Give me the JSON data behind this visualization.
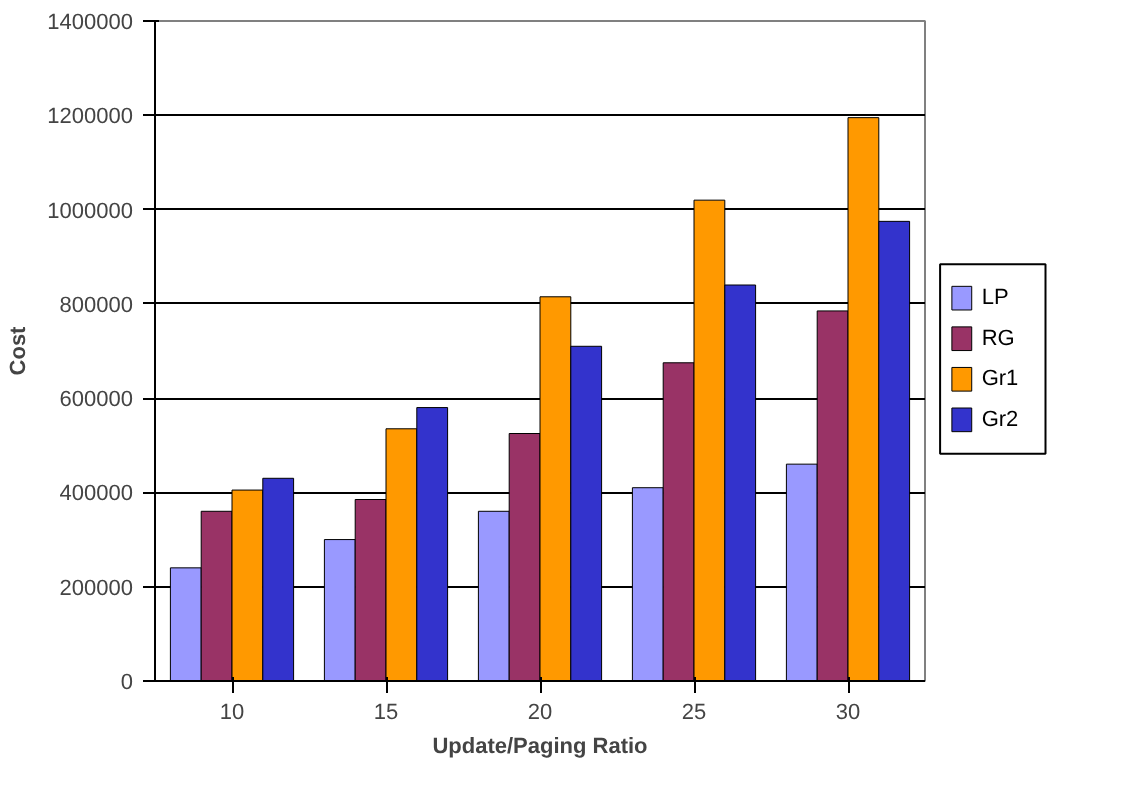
{
  "chart_data": {
    "type": "bar",
    "xlabel": "Update/Paging Ratio",
    "ylabel": "Cost",
    "categories": [
      "10",
      "15",
      "20",
      "25",
      "30"
    ],
    "series": [
      {
        "name": "LP",
        "color": "#9999ff",
        "values": [
          240000,
          300000,
          360000,
          410000,
          460000
        ]
      },
      {
        "name": "RG",
        "color": "#993366",
        "values": [
          360000,
          385000,
          525000,
          675000,
          785000
        ]
      },
      {
        "name": "Gr1",
        "color": "#ff9900",
        "values": [
          405000,
          535000,
          815000,
          1020000,
          1195000
        ]
      },
      {
        "name": "Gr2",
        "color": "#3333cc",
        "values": [
          430000,
          580000,
          710000,
          840000,
          975000
        ]
      }
    ],
    "ylim": [
      0,
      1400000
    ],
    "yticks": [
      0,
      200000,
      400000,
      600000,
      800000,
      1000000,
      1200000,
      1400000
    ],
    "grid": "y",
    "legend": "right"
  }
}
